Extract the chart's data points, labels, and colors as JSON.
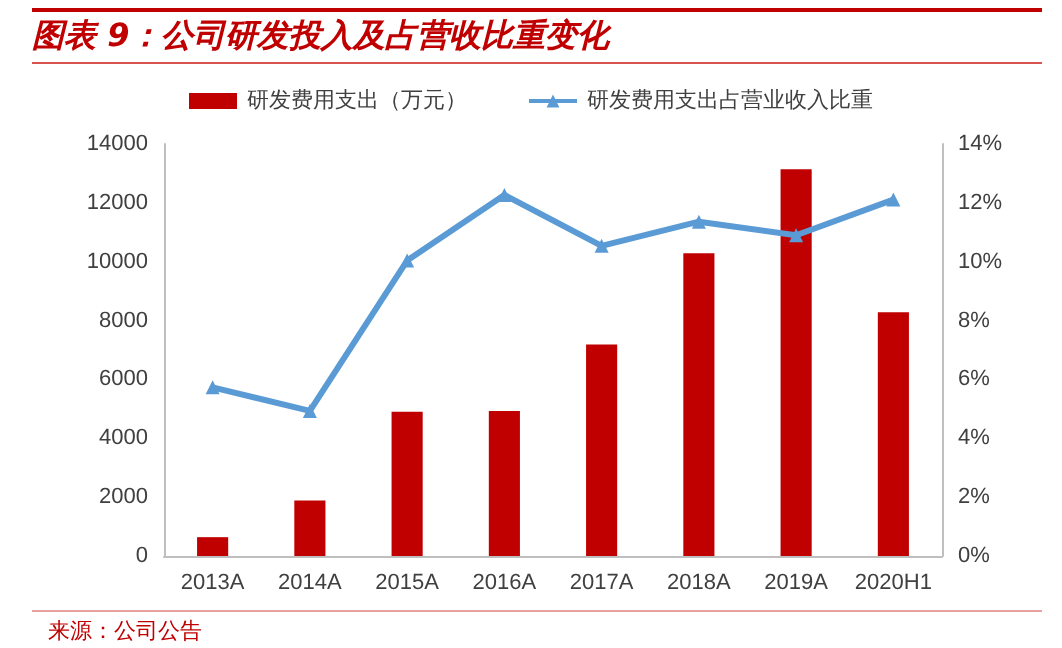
{
  "chart_data": {
    "type": "bar",
    "title": "图表 9：公司研发投入及占营收比重变化",
    "categories": [
      "2013A",
      "2014A",
      "2015A",
      "2016A",
      "2017A",
      "2018A",
      "2019A",
      "2020H1"
    ],
    "series": [
      {
        "name": "研发费用支出（万元）",
        "color": "#c00000",
        "values": [
          640,
          1890,
          4900,
          4930,
          7190,
          10290,
          13140,
          8280
        ]
      },
      {
        "name": "研发费用支出占营业收入比重",
        "type": "line",
        "axis": "y2",
        "color": "#5b9bd5",
        "marker": "triangle",
        "values": [
          5.73,
          4.93,
          10.04,
          12.27,
          10.54,
          11.36,
          10.9,
          12.11
        ]
      }
    ],
    "ylim": [
      0,
      14000
    ],
    "yticks": [
      0,
      2000,
      4000,
      6000,
      8000,
      10000,
      12000,
      14000
    ],
    "y2lim": [
      0,
      14
    ],
    "y2ticks": [
      {
        "value": 0,
        "label": "0%"
      },
      {
        "value": 2,
        "label": "2%"
      },
      {
        "value": 4,
        "label": "4%"
      },
      {
        "value": 6,
        "label": "6%"
      },
      {
        "value": 8,
        "label": "8%"
      },
      {
        "value": 10,
        "label": "10%"
      },
      {
        "value": 12,
        "label": "12%"
      },
      {
        "value": 14,
        "label": "14%"
      }
    ],
    "grid": false,
    "legend": "top",
    "annotations": [
      "来源：公司公告"
    ]
  }
}
